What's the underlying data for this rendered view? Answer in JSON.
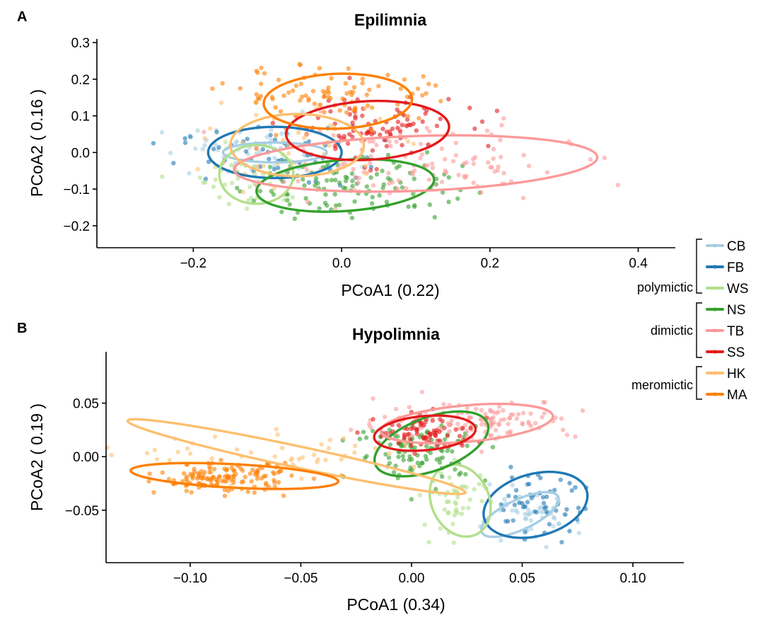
{
  "colors": {
    "CB": "#a6cee3",
    "FB": "#1f78b4",
    "WS": "#b2df8a",
    "NS": "#33a02c",
    "TB": "#fb9a99",
    "SS": "#e31a1c",
    "HK": "#fdbf6f",
    "MA": "#ff7f00"
  },
  "legend": {
    "entries": [
      "CB",
      "FB",
      "WS",
      "NS",
      "TB",
      "SS",
      "HK",
      "MA"
    ],
    "groups": [
      {
        "label": "polymictic",
        "members": [
          "CB",
          "FB",
          "WS"
        ]
      },
      {
        "label": "dimictic",
        "members": [
          "NS",
          "TB",
          "SS"
        ]
      },
      {
        "label": "meromictic",
        "members": [
          "HK",
          "MA"
        ]
      }
    ]
  },
  "chart_data": [
    {
      "type": "scatter",
      "panel": "A",
      "title": "Epilimnia",
      "xlabel": "PCoA1 (0.22)",
      "ylabel": "PCoA2 ( 0.16 )",
      "xlim": [
        -0.33,
        0.45
      ],
      "ylim": [
        -0.26,
        0.31
      ],
      "xticks": [
        -0.2,
        0.0,
        0.2,
        0.4
      ],
      "xtick_labels": [
        "−0.2",
        "0.0",
        "0.2",
        "0.4"
      ],
      "yticks": [
        -0.2,
        -0.1,
        0.0,
        0.1,
        0.2,
        0.3
      ],
      "ytick_labels": [
        "−0.2",
        "−0.1",
        "0.0",
        "0.1",
        "0.2",
        "0.3"
      ],
      "series": [
        {
          "name": "CB",
          "ellipse": {
            "cx": -0.09,
            "cy": 0.0,
            "rx": 0.07,
            "ry": 0.027,
            "angle": 0
          },
          "spread": {
            "cx": -0.12,
            "cy": 0.0,
            "sx": 0.09,
            "sy": 0.05,
            "n": 50
          }
        },
        {
          "name": "FB",
          "ellipse": {
            "cx": -0.09,
            "cy": 0.0,
            "rx": 0.09,
            "ry": 0.07,
            "angle": 0
          },
          "spread": {
            "cx": -0.1,
            "cy": -0.01,
            "sx": 0.08,
            "sy": 0.05,
            "n": 55
          }
        },
        {
          "name": "WS",
          "ellipse": {
            "cx": -0.115,
            "cy": -0.06,
            "rx": 0.05,
            "ry": 0.08,
            "angle": 0
          },
          "spread": {
            "cx": -0.12,
            "cy": -0.06,
            "sx": 0.05,
            "sy": 0.06,
            "n": 45
          }
        },
        {
          "name": "NS",
          "ellipse": {
            "cx": 0.005,
            "cy": -0.09,
            "rx": 0.12,
            "ry": 0.07,
            "angle": -4
          },
          "spread": {
            "cx": 0.01,
            "cy": -0.09,
            "sx": 0.1,
            "sy": 0.06,
            "n": 110
          }
        },
        {
          "name": "TB",
          "ellipse": {
            "cx": 0.1,
            "cy": -0.03,
            "rx": 0.245,
            "ry": 0.075,
            "angle": -2
          },
          "spread": {
            "cx": 0.1,
            "cy": -0.03,
            "sx": 0.14,
            "sy": 0.07,
            "n": 120
          }
        },
        {
          "name": "SS",
          "ellipse": {
            "cx": 0.035,
            "cy": 0.06,
            "rx": 0.11,
            "ry": 0.08,
            "angle": -3
          },
          "spread": {
            "cx": 0.035,
            "cy": 0.07,
            "sx": 0.08,
            "sy": 0.06,
            "n": 90
          }
        },
        {
          "name": "HK",
          "ellipse": {
            "cx": -0.06,
            "cy": 0.02,
            "rx": 0.09,
            "ry": 0.085,
            "angle": 0
          },
          "spread": {
            "cx": -0.06,
            "cy": 0.02,
            "sx": 0.08,
            "sy": 0.07,
            "n": 45
          }
        },
        {
          "name": "MA",
          "ellipse": {
            "cx": -0.005,
            "cy": 0.14,
            "rx": 0.1,
            "ry": 0.075,
            "angle": -2
          },
          "spread": {
            "cx": 0.0,
            "cy": 0.16,
            "sx": 0.1,
            "sy": 0.05,
            "n": 90
          }
        }
      ]
    },
    {
      "type": "scatter",
      "panel": "B",
      "title": "Hypolimnia",
      "xlabel": "PCoA1 (0.34)",
      "ylabel": "PCoA2 ( 0.19 )",
      "xlim": [
        -0.138,
        0.123
      ],
      "ylim": [
        -0.099,
        0.098
      ],
      "xticks": [
        -0.1,
        -0.05,
        0.0,
        0.05,
        0.1
      ],
      "xtick_labels": [
        "−0.10",
        "−0.05",
        "0.00",
        "0.05",
        "0.10"
      ],
      "yticks": [
        -0.05,
        0.0,
        0.05
      ],
      "ytick_labels": [
        "−0.05",
        "0.00",
        "0.05"
      ],
      "series": [
        {
          "name": "CB",
          "ellipse": {
            "cx": 0.049,
            "cy": -0.054,
            "rx": 0.019,
            "ry": 0.014,
            "angle": -25
          },
          "spread": {
            "cx": 0.052,
            "cy": -0.058,
            "sx": 0.015,
            "sy": 0.015,
            "n": 50
          }
        },
        {
          "name": "FB",
          "ellipse": {
            "cx": 0.056,
            "cy": -0.045,
            "rx": 0.024,
            "ry": 0.029,
            "angle": -15
          },
          "spread": {
            "cx": 0.056,
            "cy": -0.045,
            "sx": 0.015,
            "sy": 0.018,
            "n": 55
          }
        },
        {
          "name": "WS",
          "ellipse": {
            "cx": 0.022,
            "cy": -0.041,
            "rx": 0.013,
            "ry": 0.035,
            "angle": -25
          },
          "spread": {
            "cx": 0.02,
            "cy": -0.04,
            "sx": 0.01,
            "sy": 0.022,
            "n": 45
          }
        },
        {
          "name": "NS",
          "ellipse": {
            "cx": 0.009,
            "cy": 0.012,
            "rx": 0.027,
            "ry": 0.025,
            "angle": -20
          },
          "spread": {
            "cx": 0.005,
            "cy": 0.005,
            "sx": 0.02,
            "sy": 0.018,
            "n": 100
          }
        },
        {
          "name": "TB",
          "ellipse": {
            "cx": 0.025,
            "cy": 0.031,
            "rx": 0.039,
            "ry": 0.017,
            "angle": -5
          },
          "spread": {
            "cx": 0.03,
            "cy": 0.035,
            "sx": 0.03,
            "sy": 0.012,
            "n": 120
          }
        },
        {
          "name": "SS",
          "ellipse": {
            "cx": 0.006,
            "cy": 0.022,
            "rx": 0.023,
            "ry": 0.016,
            "angle": -5
          },
          "spread": {
            "cx": 0.006,
            "cy": 0.022,
            "sx": 0.015,
            "sy": 0.011,
            "n": 80
          }
        },
        {
          "name": "HK",
          "ellipse": {
            "cx": -0.052,
            "cy": 0.0,
            "rx": 0.078,
            "ry": 0.01,
            "angle": 12
          },
          "spread": {
            "cx": -0.055,
            "cy": 0.0,
            "sx": 0.045,
            "sy": 0.013,
            "n": 50
          }
        },
        {
          "name": "MA",
          "ellipse": {
            "cx": -0.08,
            "cy": -0.018,
            "rx": 0.047,
            "ry": 0.011,
            "angle": 3
          },
          "spread": {
            "cx": -0.085,
            "cy": -0.02,
            "sx": 0.02,
            "sy": 0.009,
            "n": 140
          }
        }
      ]
    }
  ]
}
